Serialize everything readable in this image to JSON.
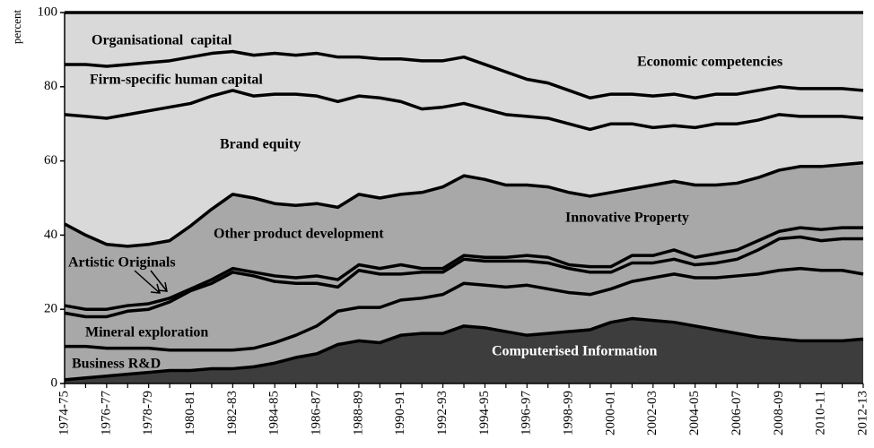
{
  "chart_data": {
    "type": "stacked_area",
    "y_label": "percent",
    "categories": [
      "1974-75",
      null,
      "1976-77",
      null,
      "1978-79",
      null,
      "1980-81",
      null,
      "1982-83",
      null,
      "1984-85",
      null,
      "1986-87",
      null,
      "1988-89",
      null,
      "1990-91",
      null,
      "1992-93",
      null,
      "1994-95",
      null,
      "1996-97",
      null,
      "1998-99",
      null,
      "2000-01",
      null,
      "2002-03",
      null,
      "2004-05",
      null,
      "2006-07",
      null,
      "2008-09",
      null,
      "2010-11",
      null,
      "2012-13"
    ],
    "ylim": [
      0,
      100
    ],
    "yticks": [
      0,
      20,
      40,
      60,
      80,
      100
    ],
    "annotations": [
      "Economic competencies",
      "Innovative Property"
    ],
    "series": [
      {
        "name": "Computerised Information",
        "color": "#3d3d3d",
        "values": [
          1,
          1.5,
          2,
          2.5,
          3,
          3.5,
          3.5,
          4,
          4,
          4.5,
          5.5,
          7,
          8,
          10.5,
          11.5,
          11,
          13,
          13.5,
          13.5,
          15.5,
          15,
          14,
          13,
          13.5,
          14,
          14.5,
          16.5,
          17.5,
          17,
          16.5,
          15.5,
          14.5,
          13.5,
          12.5,
          12,
          11.5,
          11.5,
          11.5,
          12
        ]
      },
      {
        "name": "Business R&D",
        "color": "#a8a8a8",
        "values": [
          9,
          8.5,
          7.5,
          7,
          6.5,
          5.5,
          5.5,
          5,
          5,
          5,
          5.5,
          6,
          7.5,
          9,
          9,
          9.5,
          9.5,
          9.5,
          10.5,
          11.5,
          11.5,
          12,
          13.5,
          12,
          10.5,
          9.5,
          9,
          10,
          11.5,
          13,
          13,
          14,
          15.5,
          17,
          18.5,
          19.5,
          19,
          19,
          17.5
        ]
      },
      {
        "name": "Mineral exploration",
        "color": "#a8a8a8",
        "values": [
          9,
          8,
          8.5,
          10,
          10.5,
          13,
          16,
          18,
          21,
          19.5,
          16.5,
          14,
          11.5,
          6.5,
          10,
          9,
          7,
          7,
          6,
          6.5,
          6.5,
          7,
          6.5,
          7,
          6.5,
          6,
          4.5,
          5,
          4,
          4,
          3.5,
          4,
          4.5,
          6.5,
          8.5,
          8.5,
          8,
          8.5,
          9.5
        ]
      },
      {
        "name": "Artistic Originals",
        "color": "#a8a8a8",
        "values": [
          2,
          2,
          2,
          1.5,
          1.5,
          1,
          0.5,
          1,
          1,
          1,
          1.5,
          1.5,
          2,
          2,
          1.5,
          1.5,
          2.5,
          1,
          1,
          1,
          1,
          1,
          1.5,
          1.5,
          1,
          1.5,
          1.5,
          2,
          2,
          2.5,
          2,
          2.5,
          2.5,
          2.5,
          2,
          2.5,
          3,
          3,
          3
        ]
      },
      {
        "name": "Other product development",
        "color": "#a8a8a8",
        "values": [
          22,
          20,
          17.5,
          16,
          16,
          15.5,
          17,
          19,
          20,
          20,
          19.5,
          19.5,
          19.5,
          19.5,
          19,
          19,
          19,
          20.5,
          22,
          21.5,
          21,
          19.5,
          19,
          19,
          19.5,
          19,
          20,
          18,
          19,
          18.5,
          19.5,
          18.5,
          18,
          17,
          16.5,
          16.5,
          17,
          17,
          17.5
        ]
      },
      {
        "name": "Brand equity",
        "color": "#d9d9d9",
        "values": [
          29.5,
          32,
          34,
          35.5,
          36,
          36,
          33,
          30.5,
          28,
          27.5,
          29.5,
          30,
          29,
          28.5,
          26.5,
          27,
          25,
          22.5,
          21.5,
          19.5,
          19,
          19,
          18.5,
          18.5,
          18.5,
          18,
          18.5,
          17.5,
          15.5,
          15,
          15.5,
          16.5,
          16,
          15.5,
          15,
          13.5,
          13.5,
          13,
          12
        ]
      },
      {
        "name": "Firm-specific human capital",
        "color": "#d9d9d9",
        "values": [
          13.5,
          14,
          14,
          13.5,
          13,
          12.5,
          12.5,
          11.5,
          10.5,
          11,
          11,
          10.5,
          11.5,
          12,
          10.5,
          10.5,
          11.5,
          13,
          12.5,
          12.5,
          12,
          11.5,
          10,
          9.5,
          9,
          8.5,
          8,
          8,
          8.5,
          8.5,
          8,
          8,
          8,
          8,
          7.5,
          7.5,
          7.5,
          7.5,
          7.5
        ]
      },
      {
        "name": "Organisational  capital",
        "color": "#d9d9d9",
        "values": [
          14,
          14,
          14.5,
          14,
          13.5,
          13,
          12,
          11,
          10.5,
          11.5,
          11,
          11.5,
          11,
          12,
          12,
          12.5,
          12.5,
          13,
          13,
          12,
          14,
          16,
          18,
          19,
          21,
          23,
          22,
          22,
          22.5,
          22,
          23,
          22,
          22,
          21,
          20,
          20.5,
          20.5,
          20.5,
          21
        ]
      }
    ]
  }
}
